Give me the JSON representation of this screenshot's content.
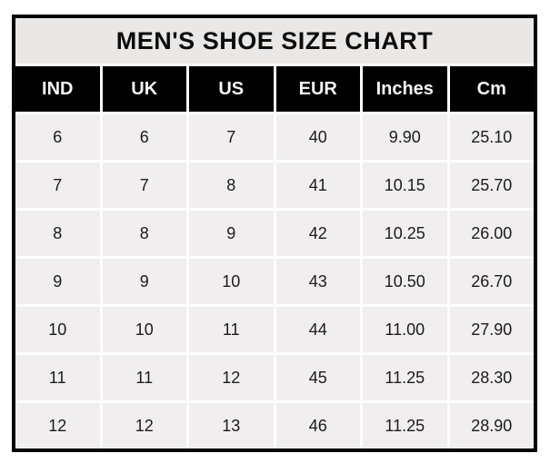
{
  "chart_data": {
    "type": "table",
    "title": "MEN'S SHOE SIZE CHART",
    "headers": [
      "IND",
      "UK",
      "US",
      "EUR",
      "Inches",
      "Cm"
    ],
    "rows": [
      [
        "6",
        "6",
        "7",
        "40",
        "9.90",
        "25.10"
      ],
      [
        "7",
        "7",
        "8",
        "41",
        "10.15",
        "25.70"
      ],
      [
        "8",
        "8",
        "9",
        "42",
        "10.25",
        "26.00"
      ],
      [
        "9",
        "9",
        "10",
        "43",
        "10.50",
        "26.70"
      ],
      [
        "10",
        "10",
        "11",
        "44",
        "11.00",
        "27.90"
      ],
      [
        "11",
        "11",
        "12",
        "45",
        "11.25",
        "28.30"
      ],
      [
        "12",
        "12",
        "13",
        "46",
        "11.25",
        "28.90"
      ]
    ],
    "layout": {
      "legend": "none",
      "grid": "white gridline gaps between cells",
      "border": "thick black outer frame"
    },
    "colors": {
      "outer_border": "#040404",
      "title_background": "#eae8e7",
      "header_background": "#000000",
      "header_text": "#f7f5f2",
      "cell_background": "#f0eeee",
      "cell_text": "#1b1b1b",
      "gridline": "#fdfdfd",
      "page_background": "#ffffff"
    }
  }
}
